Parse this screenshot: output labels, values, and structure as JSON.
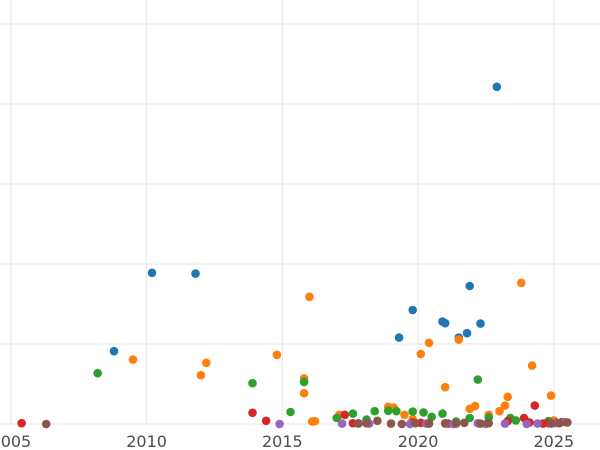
{
  "chart_data": {
    "type": "scatter",
    "title": "",
    "xlabel": "",
    "ylabel": "",
    "xlim": [
      2004.6,
      2026.7
    ],
    "ylim": [
      0,
      106
    ],
    "grid": true,
    "legend": "none",
    "x_ticks": [
      {
        "value": 2005,
        "label": "2005"
      },
      {
        "value": 2010,
        "label": "2010"
      },
      {
        "value": 2015,
        "label": "2015"
      },
      {
        "value": 2020,
        "label": "2020"
      },
      {
        "value": 2025,
        "label": "2025"
      }
    ],
    "y_gridlines": [
      0,
      20,
      40,
      60,
      80,
      100
    ],
    "series": [
      {
        "color": "#1f77b4",
        "points": [
          [
            2008.8,
            18.2
          ],
          [
            2010.2,
            37.8
          ],
          [
            2011.8,
            37.6
          ],
          [
            2019.3,
            21.6
          ],
          [
            2019.8,
            28.5
          ],
          [
            2020.9,
            25.6
          ],
          [
            2021.0,
            25.2
          ],
          [
            2021.5,
            21.6
          ],
          [
            2021.8,
            22.7
          ],
          [
            2021.9,
            34.5
          ],
          [
            2022.3,
            25.1
          ],
          [
            2022.9,
            84.3
          ]
        ]
      },
      {
        "color": "#ff7f0e",
        "points": [
          [
            2009.5,
            16.1
          ],
          [
            2012.0,
            12.2
          ],
          [
            2012.2,
            15.3
          ],
          [
            2014.8,
            17.3
          ],
          [
            2015.8,
            7.7
          ],
          [
            2015.8,
            11.4
          ],
          [
            2016.0,
            31.8
          ],
          [
            2016.1,
            0.6
          ],
          [
            2016.2,
            0.7
          ],
          [
            2017.1,
            2.3
          ],
          [
            2018.9,
            4.3
          ],
          [
            2019.1,
            4.1
          ],
          [
            2019.5,
            2.3
          ],
          [
            2019.8,
            1.2
          ],
          [
            2020.1,
            17.5
          ],
          [
            2020.4,
            20.3
          ],
          [
            2021.0,
            9.2
          ],
          [
            2021.5,
            21.1
          ],
          [
            2021.9,
            3.8
          ],
          [
            2022.1,
            4.5
          ],
          [
            2022.6,
            2.3
          ],
          [
            2023.0,
            3.2
          ],
          [
            2023.2,
            4.6
          ],
          [
            2023.3,
            6.8
          ],
          [
            2023.8,
            35.3
          ],
          [
            2024.2,
            14.6
          ],
          [
            2024.9,
            7.1
          ],
          [
            2025.0,
            0.9
          ]
        ]
      },
      {
        "color": "#2ca02c",
        "points": [
          [
            2008.2,
            12.7
          ],
          [
            2013.9,
            10.2
          ],
          [
            2015.3,
            3.0
          ],
          [
            2015.8,
            10.5
          ],
          [
            2017.0,
            1.5
          ],
          [
            2017.6,
            2.6
          ],
          [
            2018.1,
            1.1
          ],
          [
            2018.4,
            3.2
          ],
          [
            2018.9,
            3.3
          ],
          [
            2019.2,
            3.2
          ],
          [
            2019.8,
            3.1
          ],
          [
            2020.2,
            2.9
          ],
          [
            2020.5,
            1.8
          ],
          [
            2020.9,
            2.6
          ],
          [
            2021.4,
            0.6
          ],
          [
            2021.9,
            1.5
          ],
          [
            2022.2,
            11.1
          ],
          [
            2022.6,
            1.6
          ],
          [
            2023.4,
            1.5
          ],
          [
            2023.6,
            0.9
          ],
          [
            2024.8,
            0.7
          ]
        ]
      },
      {
        "color": "#d62728",
        "points": [
          [
            2005.4,
            0.2
          ],
          [
            2013.9,
            2.8
          ],
          [
            2014.4,
            0.8
          ],
          [
            2017.3,
            2.3
          ],
          [
            2017.6,
            0.2
          ],
          [
            2019.8,
            0.4
          ],
          [
            2020.1,
            0.3
          ],
          [
            2020.4,
            0.2
          ],
          [
            2021.1,
            0.1
          ],
          [
            2023.3,
            0.7
          ],
          [
            2023.9,
            1.5
          ],
          [
            2024.1,
            0.4
          ],
          [
            2024.3,
            4.6
          ],
          [
            2024.6,
            0.1
          ],
          [
            2024.8,
            0.2
          ],
          [
            2025.1,
            0.3
          ],
          [
            2025.3,
            0.5
          ]
        ]
      },
      {
        "color": "#9467bd",
        "points": [
          [
            2014.9,
            0.0
          ],
          [
            2017.2,
            0.1
          ],
          [
            2017.8,
            0.2
          ],
          [
            2018.2,
            0.1
          ],
          [
            2019.7,
            0.0
          ],
          [
            2020.3,
            0.1
          ],
          [
            2021.0,
            0.1
          ],
          [
            2021.3,
            0.0
          ],
          [
            2022.2,
            0.2
          ],
          [
            2022.5,
            0.0
          ],
          [
            2023.2,
            0.1
          ],
          [
            2024.0,
            0.0
          ],
          [
            2024.4,
            0.1
          ],
          [
            2025.0,
            0.2
          ],
          [
            2025.4,
            0.5
          ]
        ]
      },
      {
        "color": "#8c564b",
        "points": [
          [
            2006.3,
            0.0
          ],
          [
            2017.8,
            0.1
          ],
          [
            2018.1,
            0.2
          ],
          [
            2018.5,
            0.8
          ],
          [
            2019.0,
            0.1
          ],
          [
            2019.4,
            0.0
          ],
          [
            2019.9,
            0.2
          ],
          [
            2020.4,
            0.1
          ],
          [
            2021.0,
            0.2
          ],
          [
            2021.4,
            0.1
          ],
          [
            2021.7,
            0.3
          ],
          [
            2022.3,
            0.1
          ],
          [
            2022.6,
            0.2
          ],
          [
            2024.9,
            0.1
          ],
          [
            2025.2,
            0.2
          ],
          [
            2025.5,
            0.4
          ]
        ]
      }
    ]
  }
}
